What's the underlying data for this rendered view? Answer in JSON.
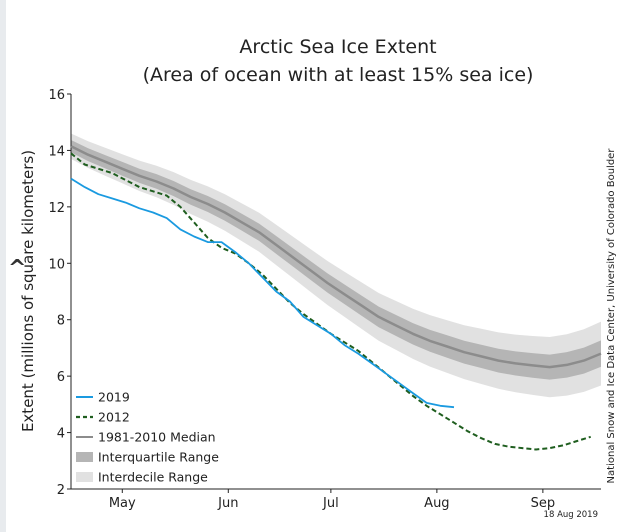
{
  "chart_data": {
    "type": "line",
    "title": "Arctic Sea Ice Extent",
    "subtitle": "(Area of ocean with at least 15% sea ice)",
    "ylabel": "Extent (millions of square kilometers)",
    "xlabel": "",
    "ylim": [
      2,
      16
    ],
    "yticks": [
      "2",
      "4",
      "6",
      "8",
      "10",
      "12",
      "14",
      "16"
    ],
    "xticks": [
      {
        "label": "May",
        "x": 15
      },
      {
        "label": "Jun",
        "x": 46
      },
      {
        "label": "Jul",
        "x": 76
      },
      {
        "label": "Aug",
        "x": 107
      },
      {
        "label": "Sep",
        "x": 138
      }
    ],
    "xlim": [
      0,
      155
    ],
    "credit": "National Snow and Ice Data Center, University of Colorado Boulder",
    "date_stamp": "18 Aug 2019",
    "grid": false,
    "legend_position": "bottom-left",
    "series": [
      {
        "name": "2019",
        "color": "#1a9ae0",
        "style": "solid",
        "x": [
          0,
          4,
          8,
          12,
          16,
          20,
          24,
          28,
          32,
          36,
          40,
          44,
          48,
          52,
          56,
          60,
          64,
          68,
          72,
          76,
          80,
          84,
          88,
          92,
          96,
          100,
          104,
          108,
          112
        ],
        "y": [
          13.0,
          12.7,
          12.45,
          12.3,
          12.15,
          11.95,
          11.8,
          11.6,
          11.2,
          10.95,
          10.75,
          10.75,
          10.4,
          10.0,
          9.5,
          9.0,
          8.65,
          8.1,
          7.8,
          7.5,
          7.1,
          6.8,
          6.45,
          6.1,
          5.75,
          5.4,
          5.05,
          4.95,
          4.9
        ]
      },
      {
        "name": "2012",
        "color": "#1f5e1f",
        "style": "dashed",
        "x": [
          0,
          4,
          8,
          12,
          16,
          20,
          24,
          28,
          32,
          36,
          40,
          44,
          48,
          52,
          56,
          60,
          64,
          68,
          72,
          76,
          80,
          84,
          88,
          92,
          96,
          100,
          104,
          108,
          112,
          116,
          120,
          124,
          128,
          132,
          136,
          140,
          144,
          148,
          152
        ],
        "y": [
          13.9,
          13.5,
          13.35,
          13.2,
          12.95,
          12.7,
          12.55,
          12.4,
          12.0,
          11.45,
          10.9,
          10.55,
          10.35,
          10.0,
          9.6,
          9.1,
          8.6,
          8.2,
          7.85,
          7.5,
          7.2,
          6.9,
          6.5,
          6.1,
          5.7,
          5.3,
          4.95,
          4.65,
          4.35,
          4.05,
          3.8,
          3.6,
          3.5,
          3.45,
          3.4,
          3.45,
          3.55,
          3.7,
          3.85
        ]
      },
      {
        "name": "1981-2010 Median",
        "color": "#8c8c8c",
        "style": "solid",
        "x": [
          0,
          5,
          10,
          15,
          20,
          25,
          30,
          35,
          40,
          45,
          50,
          55,
          60,
          65,
          70,
          75,
          80,
          85,
          90,
          95,
          100,
          105,
          110,
          115,
          120,
          125,
          130,
          135,
          140,
          145,
          150,
          155
        ],
        "y": [
          14.15,
          13.85,
          13.6,
          13.35,
          13.1,
          12.9,
          12.65,
          12.35,
          12.1,
          11.8,
          11.45,
          11.1,
          10.65,
          10.2,
          9.75,
          9.3,
          8.9,
          8.5,
          8.1,
          7.8,
          7.5,
          7.25,
          7.05,
          6.85,
          6.7,
          6.55,
          6.45,
          6.38,
          6.32,
          6.4,
          6.55,
          6.8
        ]
      }
    ],
    "bands": [
      {
        "name": "Interquartile Range",
        "color": "#b5b5b5"
      },
      {
        "name": "Interdecile Range",
        "color": "#e1e1e1"
      }
    ]
  },
  "ui": {
    "nav_arrow": "^"
  }
}
